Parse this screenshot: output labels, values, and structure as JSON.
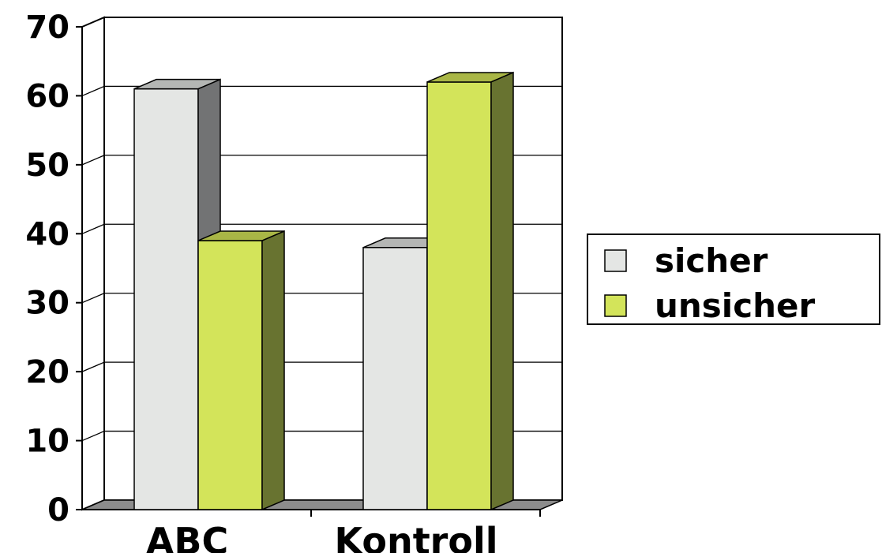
{
  "chart_data": {
    "type": "bar",
    "categories": [
      "ABC",
      "Kontroll"
    ],
    "series": [
      {
        "name": "sicher",
        "values": [
          61,
          38
        ],
        "color": "#e4e6e4",
        "side_color": "#727374",
        "top_color": "#b4b6b4"
      },
      {
        "name": "unsicher",
        "values": [
          39,
          62
        ],
        "color": "#d3e45a",
        "side_color": "#687330",
        "top_color": "#a9b646"
      }
    ],
    "ylim": [
      0,
      70
    ],
    "yticks": [
      "0",
      "10",
      "20",
      "30",
      "40",
      "50",
      "60",
      "70"
    ],
    "grid": true,
    "three_d": true,
    "legend_position": "right",
    "title": "",
    "xlabel": "",
    "ylabel": ""
  }
}
